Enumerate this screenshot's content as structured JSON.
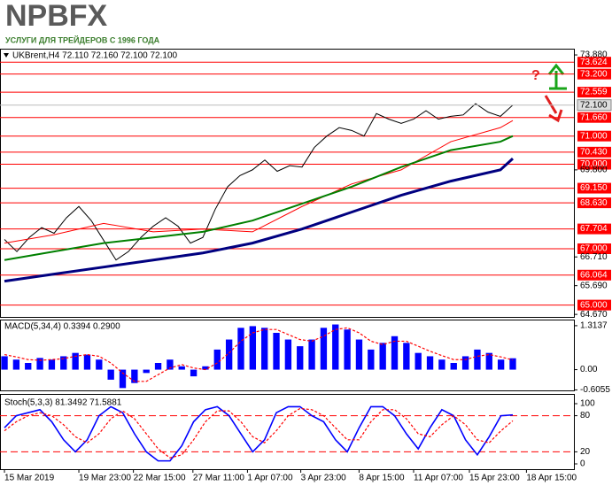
{
  "header": {
    "logo": "NPBFX",
    "tagline": "УСЛУГИ ДЛЯ ТРЕЙДЕРОВ С 1996 ГОДА"
  },
  "chart_data": [
    {
      "type": "line",
      "title": "UKBrent,H4  72.110 72.160 72.100 72.100",
      "annotation": "?",
      "xlim": [
        -0.36,
        45.93
      ],
      "xticks": [
        {
          "value": 0,
          "label": "15 Mar 2019"
        },
        {
          "value": 6,
          "label": "19 Mar 23:00"
        },
        {
          "value": 10.4,
          "label": "22 Mar 15:00"
        },
        {
          "value": 15.2,
          "label": "27 Mar 11:00"
        },
        {
          "value": 19.6,
          "label": "1 Apr 07:00"
        },
        {
          "value": 23.9,
          "label": "3 Apr 23:00"
        },
        {
          "value": 28.6,
          "label": "8 Apr 15:00"
        },
        {
          "value": 33,
          "label": "11 Apr 07:00"
        },
        {
          "value": 37.5,
          "label": "15 Apr 23:00"
        },
        {
          "value": 42.1,
          "label": "18 Apr 15:00"
        }
      ],
      "ylim": [
        64.58,
        74.07
      ],
      "yticks": [
        {
          "value": 73.88,
          "label": "73.880"
        },
        {
          "value": 69.8,
          "label": "69.800"
        },
        {
          "value": 66.71,
          "label": "66.710"
        },
        {
          "value": 65.69,
          "label": "65.690"
        },
        {
          "value": 64.67,
          "label": "64.670"
        }
      ],
      "levels": [
        {
          "value": 73.624,
          "label": "73.624"
        },
        {
          "value": 73.2,
          "label": "73.200"
        },
        {
          "value": 72.559,
          "label": "72.559"
        },
        {
          "value": 71.66,
          "label": "71.660"
        },
        {
          "value": 71,
          "label": "71.000"
        },
        {
          "value": 70.43,
          "label": "70.430"
        },
        {
          "value": 70,
          "label": "70.000"
        },
        {
          "value": 69.15,
          "label": "69.150"
        },
        {
          "value": 68.63,
          "label": "68.630"
        },
        {
          "value": 67.704,
          "label": "67.704"
        },
        {
          "value": 67,
          "label": "67.000"
        },
        {
          "value": 66.064,
          "label": "66.064"
        },
        {
          "value": 65,
          "label": "65.000"
        }
      ],
      "level_color": "#ff0000",
      "current_price": {
        "value": 72.1,
        "label": "72.100"
      },
      "series": [
        {
          "color": "#000000",
          "width": 1,
          "values": [
            67.33,
            66.9,
            67.4,
            67.75,
            67.55,
            68.1,
            68.5,
            68.0,
            67.3,
            66.6,
            66.9,
            67.4,
            67.8,
            68.1,
            67.8,
            67.2,
            67.4,
            68.4,
            69.2,
            69.6,
            69.8,
            70.15,
            69.75,
            69.95,
            69.9,
            70.6,
            71.0,
            71.3,
            71.2,
            71.0,
            71.8,
            71.6,
            71.45,
            71.6,
            71.9,
            71.6,
            71.7,
            71.75,
            72.15,
            71.85,
            71.7,
            72.1
          ]
        },
        {
          "color": "#ff0000",
          "width": 1,
          "x": [
            0,
            4,
            8,
            12,
            16,
            20,
            24,
            28,
            32,
            36,
            40,
            41
          ],
          "values": [
            67.2,
            67.5,
            67.9,
            67.6,
            67.7,
            67.6,
            68.5,
            69.3,
            69.8,
            70.8,
            71.3,
            71.55
          ]
        },
        {
          "color": "#008000",
          "width": 2,
          "x": [
            0,
            4,
            8,
            12,
            16,
            20,
            24,
            28,
            32,
            36,
            40,
            41
          ],
          "values": [
            66.6,
            66.9,
            67.2,
            67.4,
            67.6,
            68.0,
            68.6,
            69.2,
            69.9,
            70.5,
            70.8,
            71.0
          ]
        },
        {
          "color": "#000080",
          "width": 3,
          "x": [
            0,
            4,
            8,
            12,
            16,
            20,
            24,
            28,
            32,
            36,
            40,
            41
          ],
          "values": [
            65.85,
            66.1,
            66.35,
            66.6,
            66.85,
            67.2,
            67.7,
            68.3,
            68.9,
            69.4,
            69.8,
            70.2
          ]
        }
      ]
    },
    {
      "type": "macd",
      "title": "MACD(5,34,4) 0.3394 0.2900",
      "ylim": [
        -0.62,
        1.47
      ],
      "yticks": [
        1.3137,
        {
          "value": 0,
          "label": "0.00"
        },
        -0.6055
      ],
      "series": [
        {
          "color": "#0000ff",
          "values": [
            0.4,
            0.3,
            0.2,
            0.35,
            0.3,
            0.4,
            0.5,
            0.45,
            0.3,
            -0.3,
            -0.55,
            -0.4,
            -0.1,
            0.2,
            0.3,
            0.1,
            -0.2,
            0.1,
            0.6,
            0.9,
            1.25,
            1.3,
            1.25,
            1.1,
            0.9,
            0.7,
            0.9,
            1.25,
            1.35,
            1.2,
            0.9,
            0.6,
            0.8,
            1.0,
            0.8,
            0.5,
            0.4,
            0.3,
            0.2,
            0.4,
            0.6,
            0.5,
            0.3,
            0.34
          ]
        },
        {
          "color": "#ff0000",
          "values": [
            0.45,
            0.38,
            0.3,
            0.28,
            0.3,
            0.33,
            0.4,
            0.45,
            0.4,
            0.2,
            -0.1,
            -0.35,
            -0.35,
            -0.15,
            0.05,
            0.15,
            0.05,
            0.0,
            0.2,
            0.5,
            0.85,
            1.1,
            1.2,
            1.2,
            1.05,
            0.9,
            0.85,
            1.0,
            1.2,
            1.25,
            1.1,
            0.85,
            0.75,
            0.85,
            0.85,
            0.7,
            0.55,
            0.42,
            0.3,
            0.3,
            0.4,
            0.45,
            0.38,
            0.29
          ]
        }
      ]
    },
    {
      "type": "stoch",
      "title": "Stoch(5,3,3) 81.3492 71.5881",
      "ylim": [
        -8.8,
        114.7
      ],
      "yticks": [
        100,
        80,
        20,
        0
      ],
      "levels": [
        80,
        20
      ],
      "level_color": "#ff0000",
      "series": [
        {
          "color": "#0000ff",
          "values": [
            60,
            80,
            85,
            90,
            70,
            40,
            20,
            40,
            80,
            95,
            85,
            50,
            20,
            5,
            5,
            30,
            70,
            90,
            95,
            80,
            50,
            20,
            40,
            85,
            95,
            95,
            80,
            70,
            40,
            20,
            60,
            95,
            95,
            80,
            50,
            25,
            60,
            90,
            80,
            40,
            15,
            45,
            80,
            81.35
          ]
        },
        {
          "color": "#ff0000",
          "values": [
            55,
            70,
            80,
            85,
            80,
            65,
            45,
            35,
            50,
            75,
            88,
            75,
            50,
            25,
            10,
            15,
            40,
            70,
            88,
            88,
            70,
            45,
            35,
            55,
            80,
            92,
            90,
            80,
            60,
            40,
            40,
            70,
            90,
            90,
            75,
            50,
            45,
            65,
            80,
            65,
            40,
            35,
            55,
            71.59
          ]
        }
      ]
    }
  ]
}
